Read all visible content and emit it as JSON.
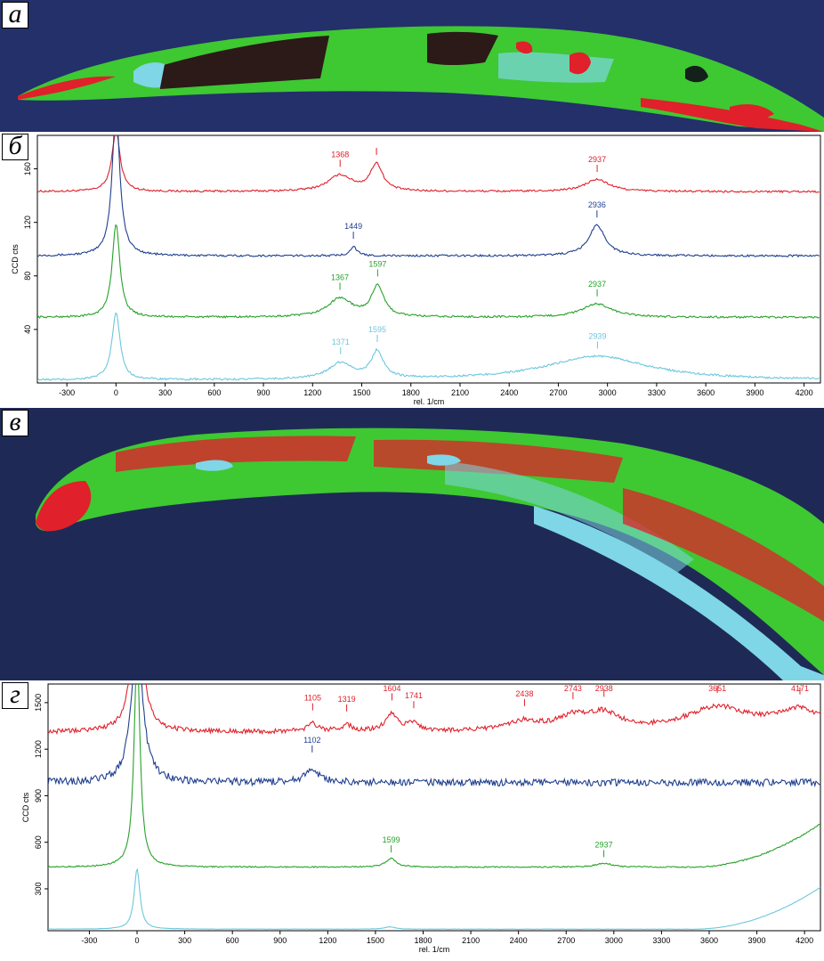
{
  "panels": {
    "a_label": "а",
    "b_label": "б",
    "c_label": "в",
    "d_label": "г"
  },
  "colors": {
    "red": "#e0202a",
    "blue": "#1f3f8f",
    "green": "#27a22a",
    "cyan": "#6cc7dc",
    "image_background": "#1e2a55",
    "image_green": "#3ec832",
    "image_cyan": "#7fd6e6",
    "image_dark": "#14201a"
  },
  "chart_data": [
    {
      "type": "line",
      "xlabel": "rel. 1/cm",
      "ylabel": "CCD cts",
      "xlim": [
        -480,
        4300
      ],
      "ylim": [
        0,
        185
      ],
      "x_ticks": [
        -300,
        0,
        300,
        600,
        900,
        1200,
        1500,
        1800,
        2100,
        2400,
        2700,
        3000,
        3300,
        3600,
        3900,
        4200
      ],
      "y_ticks": [
        40,
        80,
        120,
        160
      ],
      "grid": false,
      "series": [
        {
          "color": "#e0202a",
          "baseline": 143,
          "peaks": [
            [
              0,
              45,
              30
            ],
            [
              1368,
              12,
              90
            ],
            [
              1590,
              20,
              45
            ],
            [
              2937,
              9,
              90
            ]
          ],
          "labels": [
            {
              "x": 1368,
              "text": "1368"
            },
            {
              "x": 1590,
              "text": ""
            },
            {
              "x": 2937,
              "text": "2937"
            }
          ]
        },
        {
          "color": "#1f3f8f",
          "baseline": 95,
          "peaks": [
            [
              0,
              110,
              28
            ],
            [
              1449,
              7,
              25
            ],
            [
              2936,
              23,
              60
            ]
          ],
          "labels": [
            {
              "x": 1449,
              "text": "1449"
            },
            {
              "x": 2936,
              "text": "2936"
            }
          ]
        },
        {
          "color": "#27a22a",
          "baseline": 49,
          "peaks": [
            [
              0,
              70,
              28
            ],
            [
              1367,
              14,
              90
            ],
            [
              1597,
              23,
              45
            ],
            [
              2937,
              10,
              110
            ]
          ],
          "labels": [
            {
              "x": 1367,
              "text": "1367"
            },
            {
              "x": 1597,
              "text": "1597"
            },
            {
              "x": 2937,
              "text": "2937"
            }
          ]
        },
        {
          "color": "#6cc7dc",
          "baseline": 2,
          "peaks": [
            [
              0,
              50,
              30
            ],
            [
              1371,
              12,
              90
            ],
            [
              1595,
              20,
              45
            ],
            [
              2939,
              18,
              380
            ]
          ],
          "labels": [
            {
              "x": 1371,
              "text": "1371"
            },
            {
              "x": 1595,
              "text": "1595"
            },
            {
              "x": 2939,
              "text": "2939"
            }
          ]
        }
      ]
    },
    {
      "type": "line",
      "xlabel": "rel. 1/cm",
      "ylabel": "CCD cts",
      "xlim": [
        -560,
        4300
      ],
      "ylim": [
        30,
        1620
      ],
      "x_ticks": [
        -300,
        0,
        300,
        600,
        900,
        1200,
        1500,
        1800,
        2100,
        2400,
        2700,
        3000,
        3300,
        3600,
        3900,
        4200
      ],
      "y_ticks": [
        300,
        600,
        900,
        1200,
        1500
      ],
      "grid": false,
      "series": [
        {
          "color": "#e0202a",
          "baseline": 1310,
          "noise": 30,
          "peaks": [
            [
              0,
              900,
              40
            ],
            [
              1105,
              50,
              40
            ],
            [
              1319,
              40,
              40
            ],
            [
              1604,
              110,
              50
            ],
            [
              1741,
              50,
              40
            ],
            [
              2438,
              60,
              120
            ],
            [
              2743,
              80,
              120
            ],
            [
              2938,
              100,
              120
            ],
            [
              3651,
              150,
              250
            ],
            [
              4171,
              130,
              180
            ]
          ],
          "labels": [
            {
              "x": 1105,
              "text": "1105"
            },
            {
              "x": 1319,
              "text": "1319"
            },
            {
              "x": 1604,
              "text": "1604"
            },
            {
              "x": 1741,
              "text": "1741"
            },
            {
              "x": 2438,
              "text": "2438"
            },
            {
              "x": 2743,
              "text": "2743"
            },
            {
              "x": 2938,
              "text": "2938"
            },
            {
              "x": 3651,
              "text": "3651"
            },
            {
              "x": 4171,
              "text": "4171"
            }
          ]
        },
        {
          "color": "#1f3f8f",
          "baseline": 985,
          "noise": 45,
          "peaks": [
            [
              0,
              1000,
              40
            ],
            [
              1102,
              80,
              60
            ]
          ],
          "labels": [
            {
              "x": 1102,
              "text": "1102"
            }
          ]
        },
        {
          "color": "#27a22a",
          "baseline": 440,
          "noise": 8,
          "peaks": [
            [
              0,
              1400,
              22
            ],
            [
              1599,
              55,
              40
            ],
            [
              2937,
              25,
              60
            ]
          ],
          "rise": {
            "from": 3500,
            "to": 4300,
            "amount": 280
          },
          "labels": [
            {
              "x": 1599,
              "text": "1599"
            },
            {
              "x": 2937,
              "text": "2937"
            }
          ]
        },
        {
          "color": "#6cc7dc",
          "baseline": 40,
          "noise": 2,
          "peaks": [
            [
              0,
              390,
              22
            ],
            [
              1590,
              15,
              40
            ]
          ],
          "rise": {
            "from": 3500,
            "to": 4300,
            "amount": 270
          },
          "labels": []
        }
      ]
    }
  ]
}
